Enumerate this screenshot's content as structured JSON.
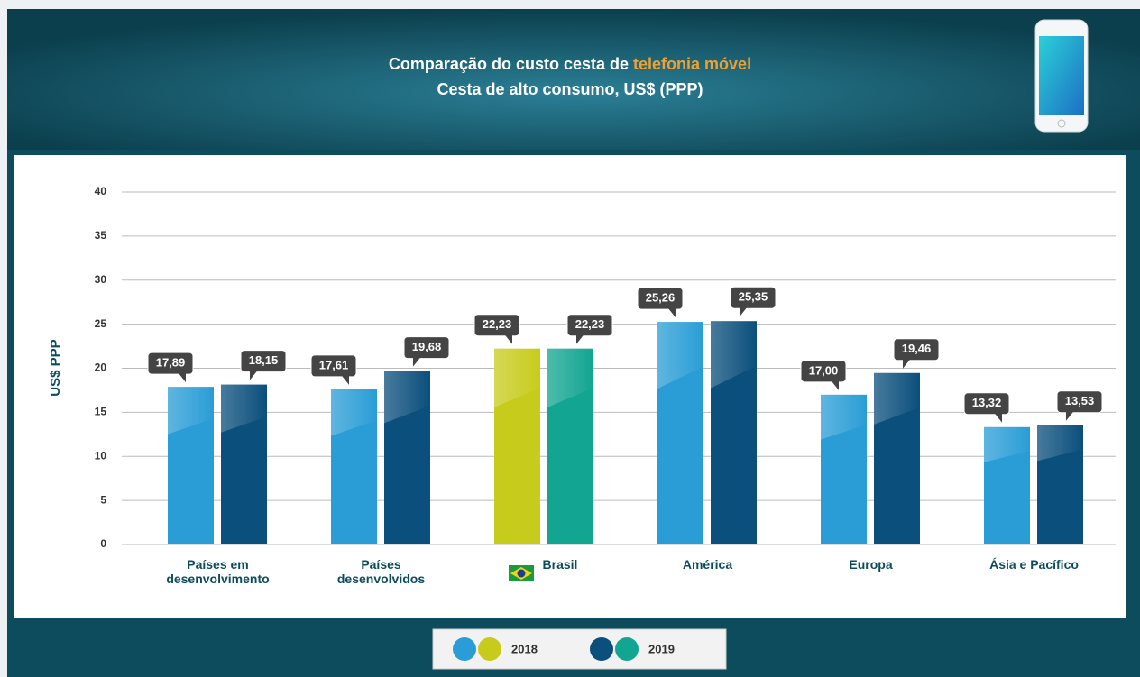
{
  "chart_data": {
    "type": "bar",
    "title": "Comparação do custo cesta de",
    "title_highlight": "telefonia móvel",
    "subtitle": "Cesta de alto consumo, US$ (PPP)",
    "y_label": "US$ PPP",
    "categories": [
      "Países em desenvolvimento",
      "Países desenvolvidos",
      "Brasil",
      "América",
      "Europa",
      "Ásia e Pacífico"
    ],
    "series": [
      {
        "name": "2018",
        "colors": [
          "#2a9dd6",
          "#2a9dd6",
          "#c7cc1c",
          "#2a9dd6",
          "#2a9dd6",
          "#2a9dd6"
        ],
        "values": [
          17.89,
          17.61,
          22.23,
          25.26,
          17.0,
          13.32
        ],
        "value_labels": [
          "17,89",
          "17,61",
          "22,23",
          "25,26",
          "17,00",
          "13,32"
        ]
      },
      {
        "name": "2019",
        "colors": [
          "#0b4f7c",
          "#0b4f7c",
          "#12a591",
          "#0b4f7c",
          "#0b4f7c",
          "#0b4f7c"
        ],
        "values": [
          18.15,
          19.68,
          22.23,
          25.35,
          19.46,
          13.53
        ],
        "value_labels": [
          "18,15",
          "19,68",
          "22,23",
          "25,35",
          "19,46",
          "13,53"
        ]
      }
    ],
    "ylim": [
      0,
      40
    ],
    "yticks": [
      0,
      5,
      10,
      15,
      20,
      25,
      30,
      35,
      40
    ],
    "grid": true
  }
}
